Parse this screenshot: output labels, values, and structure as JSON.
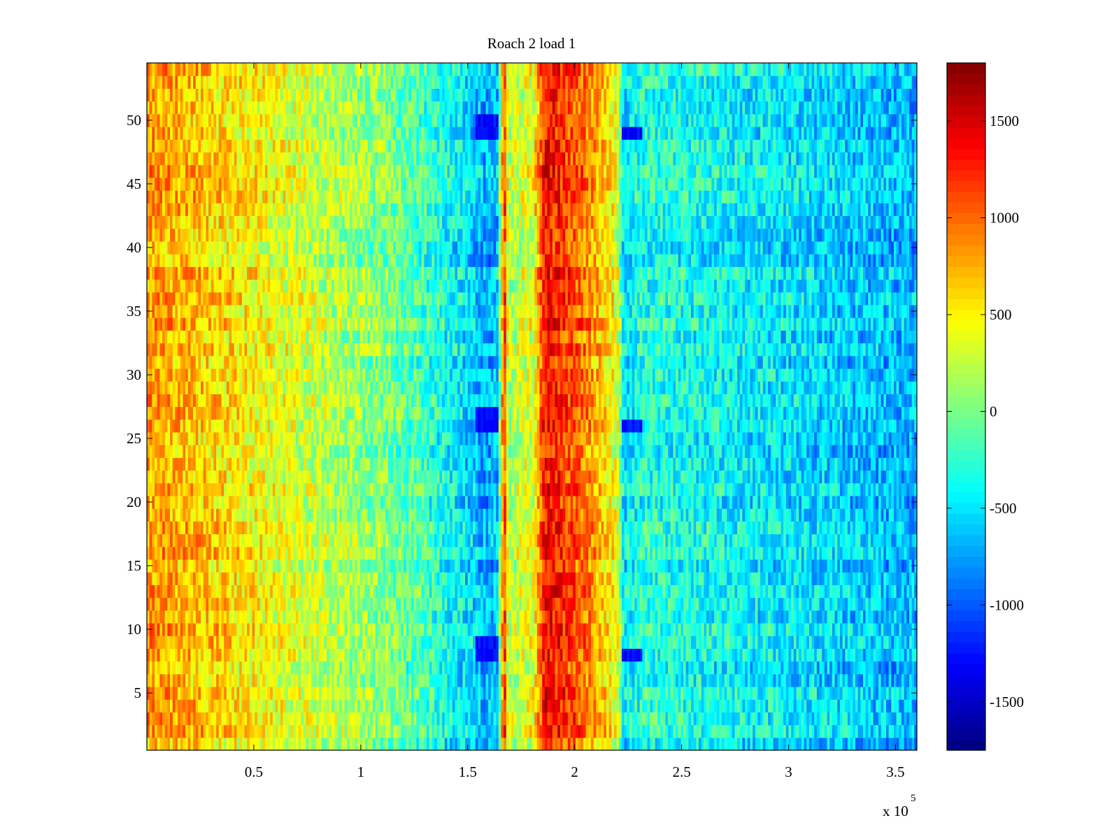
{
  "chart_data": {
    "type": "heatmap",
    "title": "Roach 2 load 1",
    "xlabel": "",
    "ylabel": "",
    "x_range": [
      0,
      360000
    ],
    "y_range": [
      0.5,
      54.5
    ],
    "x_ticks": [
      50000,
      100000,
      150000,
      200000,
      250000,
      300000,
      350000
    ],
    "x_tick_labels": [
      "0.5",
      "1",
      "1.5",
      "2",
      "2.5",
      "3",
      "3.5"
    ],
    "x_exponent_label": "x 10",
    "x_exponent_power": "5",
    "y_ticks": [
      5,
      10,
      15,
      20,
      25,
      30,
      35,
      40,
      45,
      50
    ],
    "y_tick_labels": [
      "5",
      "10",
      "15",
      "20",
      "25",
      "30",
      "35",
      "40",
      "45",
      "50"
    ],
    "rows": 54,
    "colormap": "jet",
    "colorbar": {
      "range": [
        -1750,
        1800
      ],
      "ticks": [
        1500,
        1000,
        500,
        0,
        -500,
        -1000,
        -1500
      ],
      "tick_labels": [
        "1500",
        "1000",
        "500",
        "0",
        "-500",
        "-1000",
        "-1500"
      ]
    },
    "value_profile_by_x": [
      {
        "x": 0,
        "value": 820
      },
      {
        "x": 20000,
        "value": 700
      },
      {
        "x": 50000,
        "value": 480
      },
      {
        "x": 80000,
        "value": 250
      },
      {
        "x": 110000,
        "value": 40
      },
      {
        "x": 130000,
        "value": -200
      },
      {
        "x": 148000,
        "value": -480
      },
      {
        "x": 158000,
        "value": -700
      },
      {
        "x": 164000,
        "value": -620
      },
      {
        "x": 167000,
        "value": 1300
      },
      {
        "x": 169000,
        "value": 180
      },
      {
        "x": 181000,
        "value": 400
      },
      {
        "x": 186000,
        "value": 1350
      },
      {
        "x": 195000,
        "value": 1180
      },
      {
        "x": 205000,
        "value": 950
      },
      {
        "x": 214000,
        "value": 600
      },
      {
        "x": 220000,
        "value": 380
      },
      {
        "x": 223000,
        "value": -500
      },
      {
        "x": 232000,
        "value": -300
      },
      {
        "x": 260000,
        "value": -380
      },
      {
        "x": 300000,
        "value": -480
      },
      {
        "x": 340000,
        "value": -620
      },
      {
        "x": 360000,
        "value": -680
      }
    ],
    "dark_blue_patches": [
      {
        "x_start": 154000,
        "x_end": 164000,
        "rows": [
          8,
          9,
          26,
          27,
          49,
          50
        ]
      },
      {
        "x_start": 222000,
        "x_end": 232000,
        "rows": [
          8,
          26,
          49
        ]
      }
    ]
  }
}
